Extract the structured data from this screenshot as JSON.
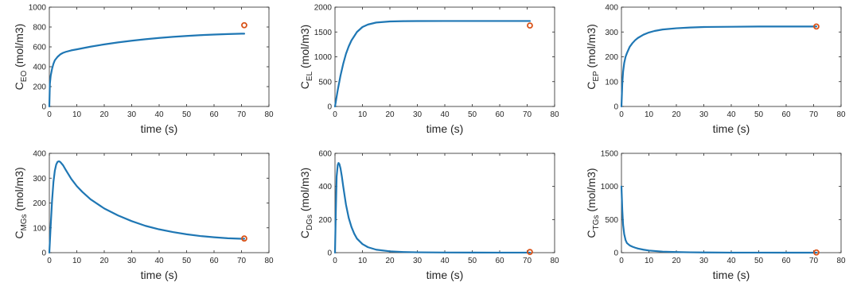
{
  "chart_data": [
    {
      "type": "line",
      "xlabel": "time (s)",
      "ylabel": {
        "main": "C",
        "sub": "EO",
        "unit": " (mol/m3)"
      },
      "xlim": [
        0,
        80
      ],
      "ylim": [
        0,
        1000
      ],
      "xticks": [
        0,
        10,
        20,
        30,
        40,
        50,
        60,
        70,
        80
      ],
      "yticks": [
        0,
        200,
        400,
        600,
        800,
        1000
      ],
      "series": [
        {
          "x": [
            0,
            0.2,
            0.5,
            1,
            1.5,
            2,
            3,
            4,
            5,
            6,
            8,
            10,
            15,
            20,
            25,
            30,
            35,
            40,
            45,
            50,
            55,
            60,
            65,
            70,
            71
          ],
          "y": [
            0,
            230,
            310,
            380,
            430,
            465,
            500,
            525,
            540,
            550,
            565,
            575,
            602,
            625,
            645,
            662,
            677,
            690,
            701,
            710,
            718,
            724,
            729,
            733,
            733
          ],
          "color": "#1f77b4"
        }
      ],
      "points": [
        {
          "x": 71,
          "y": 818,
          "color": "#d95319"
        }
      ],
      "grid": false
    },
    {
      "type": "line",
      "xlabel": "time (s)",
      "ylabel": {
        "main": "C",
        "sub": "EL",
        "unit": " (mol/m3)"
      },
      "xlim": [
        0,
        80
      ],
      "ylim": [
        0,
        2000
      ],
      "xticks": [
        0,
        10,
        20,
        30,
        40,
        50,
        60,
        70,
        80
      ],
      "yticks": [
        0,
        500,
        1000,
        1500,
        2000
      ],
      "series": [
        {
          "x": [
            0,
            1,
            2,
            3,
            4,
            5,
            6,
            8,
            10,
            12,
            15,
            20,
            25,
            30,
            40,
            50,
            60,
            70,
            71
          ],
          "y": [
            0,
            330,
            620,
            860,
            1060,
            1210,
            1330,
            1500,
            1600,
            1650,
            1690,
            1712,
            1718,
            1720,
            1721,
            1721,
            1721,
            1721,
            1721
          ],
          "color": "#1f77b4"
        }
      ],
      "points": [
        {
          "x": 71,
          "y": 1630,
          "color": "#d95319"
        }
      ],
      "grid": false
    },
    {
      "type": "line",
      "xlabel": "time (s)",
      "ylabel": {
        "main": "C",
        "sub": "EP",
        "unit": " (mol/m3)"
      },
      "xlim": [
        0,
        80
      ],
      "ylim": [
        0,
        400
      ],
      "xticks": [
        0,
        10,
        20,
        30,
        40,
        50,
        60,
        70,
        80
      ],
      "yticks": [
        0,
        100,
        200,
        300,
        400
      ],
      "series": [
        {
          "x": [
            0,
            0.3,
            0.6,
            1,
            1.5,
            2,
            3,
            4,
            5,
            6,
            8,
            10,
            12,
            15,
            20,
            25,
            30,
            40,
            50,
            60,
            70,
            71
          ],
          "y": [
            0,
            90,
            140,
            175,
            200,
            215,
            240,
            255,
            267,
            276,
            289,
            298,
            304,
            310,
            315,
            318,
            320,
            321,
            322,
            322,
            322,
            322
          ],
          "color": "#1f77b4"
        }
      ],
      "points": [
        {
          "x": 71,
          "y": 322,
          "color": "#d95319"
        }
      ],
      "grid": false
    },
    {
      "type": "line",
      "xlabel": "time (s)",
      "ylabel": {
        "main": "C",
        "sub": "MGs",
        "unit": " (mol/m3)"
      },
      "xlim": [
        0,
        80
      ],
      "ylim": [
        0,
        400
      ],
      "xticks": [
        0,
        10,
        20,
        30,
        40,
        50,
        60,
        70,
        80
      ],
      "yticks": [
        0,
        100,
        200,
        300,
        400
      ],
      "series": [
        {
          "x": [
            0,
            0.5,
            1,
            1.5,
            2,
            2.5,
            3,
            3.5,
            4,
            5,
            6,
            7,
            8,
            10,
            12,
            15,
            20,
            25,
            30,
            35,
            40,
            45,
            50,
            55,
            60,
            65,
            70,
            71
          ],
          "y": [
            0,
            110,
            210,
            285,
            330,
            355,
            366,
            368,
            365,
            352,
            333,
            315,
            297,
            268,
            245,
            215,
            178,
            150,
            127,
            108,
            94,
            83,
            74,
            67,
            62,
            58,
            56,
            56
          ],
          "color": "#1f77b4"
        }
      ],
      "points": [
        {
          "x": 71,
          "y": 57,
          "color": "#d95319"
        }
      ],
      "grid": false
    },
    {
      "type": "line",
      "xlabel": "time (s)",
      "ylabel": {
        "main": "C",
        "sub": "DGs",
        "unit": " (mol/m3)"
      },
      "xlim": [
        0,
        80
      ],
      "ylim": [
        0,
        600
      ],
      "xticks": [
        0,
        10,
        20,
        30,
        40,
        50,
        60,
        70,
        80
      ],
      "yticks": [
        0,
        200,
        400,
        600
      ],
      "series": [
        {
          "x": [
            0,
            0.3,
            0.6,
            1,
            1.3,
            1.6,
            2,
            2.5,
            3,
            3.5,
            4,
            5,
            6,
            7,
            8,
            10,
            12,
            15,
            20,
            25,
            30,
            40,
            50,
            60,
            70,
            71
          ],
          "y": [
            0,
            250,
            460,
            530,
            542,
            535,
            510,
            460,
            400,
            345,
            290,
            210,
            155,
            115,
            85,
            52,
            33,
            18,
            8,
            4,
            2,
            1,
            0.5,
            0.3,
            0.2,
            0.2
          ],
          "color": "#1f77b4"
        }
      ],
      "points": [
        {
          "x": 71,
          "y": 4,
          "color": "#d95319"
        }
      ],
      "grid": false
    },
    {
      "type": "line",
      "xlabel": "time (s)",
      "ylabel": {
        "main": "C",
        "sub": "TGs",
        "unit": " (mol/m3)"
      },
      "xlim": [
        0,
        80
      ],
      "ylim": [
        0,
        1500
      ],
      "xticks": [
        0,
        10,
        20,
        30,
        40,
        50,
        60,
        70,
        80
      ],
      "yticks": [
        0,
        500,
        1000,
        1500
      ],
      "series": [
        {
          "x": [
            0,
            0.3,
            0.6,
            1,
            1.5,
            2,
            3,
            4,
            5,
            6,
            8,
            10,
            15,
            20,
            25,
            30,
            40,
            50,
            60,
            70,
            71
          ],
          "y": [
            1000,
            650,
            420,
            280,
            190,
            145,
            110,
            90,
            75,
            62,
            45,
            32,
            16,
            9,
            5,
            3,
            1,
            0.5,
            0.3,
            0.2,
            0.2
          ],
          "color": "#1f77b4"
        }
      ],
      "points": [
        {
          "x": 71,
          "y": 3,
          "color": "#d95319"
        }
      ],
      "grid": false
    }
  ]
}
